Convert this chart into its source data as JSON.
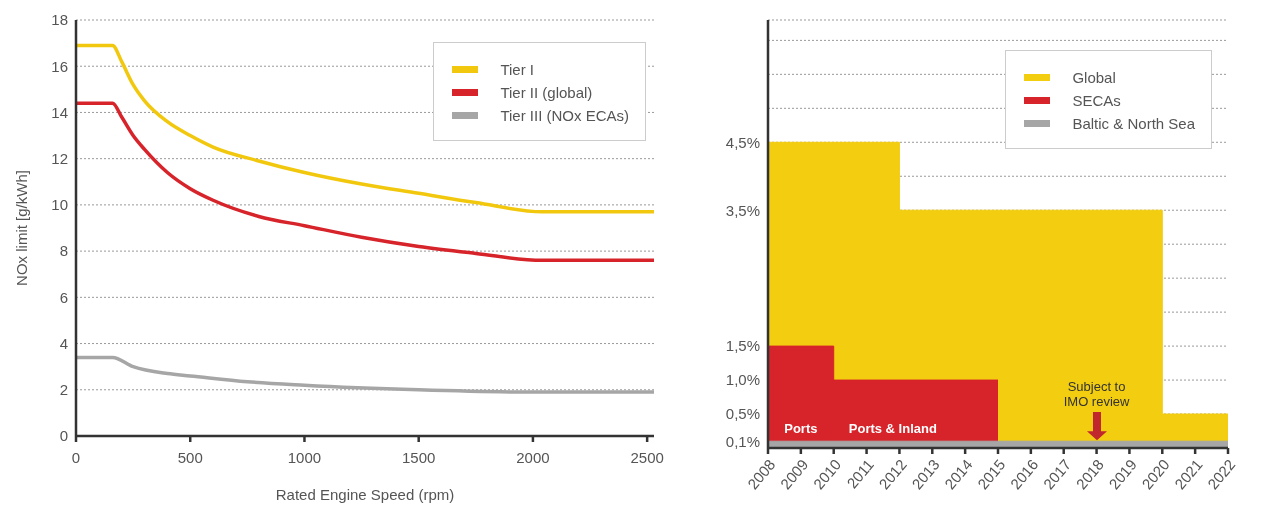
{
  "chart_data": [
    {
      "type": "line",
      "xlabel": "Rated Engine Speed (rpm)",
      "ylabel": "NOx limit [g/kWh]",
      "xlim": [
        0,
        2530
      ],
      "xticks": [
        0,
        500,
        1000,
        1500,
        2000,
        2500
      ],
      "ylim": [
        0,
        18
      ],
      "yticks": [
        0,
        2,
        4,
        6,
        8,
        10,
        12,
        14,
        16,
        18
      ],
      "grid": "y",
      "legend": "top right",
      "marker": "none",
      "series": [
        {
          "name": "Tier I",
          "color": "#f2c80f",
          "x": [
            0,
            160,
            200,
            250,
            300,
            400,
            500,
            600,
            800,
            1000,
            1250,
            1500,
            1750,
            2040,
            2530
          ],
          "values": [
            16.9,
            16.9,
            16.2,
            15.2,
            14.5,
            13.6,
            13.0,
            12.5,
            11.9,
            11.4,
            10.9,
            10.5,
            10.1,
            9.7,
            9.7
          ]
        },
        {
          "name": "Tier II (global)",
          "color": "#d7232a",
          "x": [
            0,
            160,
            200,
            250,
            300,
            400,
            500,
            600,
            800,
            1000,
            1250,
            1500,
            1750,
            2040,
            2530
          ],
          "values": [
            14.4,
            14.4,
            13.8,
            13.0,
            12.4,
            11.4,
            10.7,
            10.2,
            9.5,
            9.1,
            8.6,
            8.2,
            7.9,
            7.6,
            7.6
          ]
        },
        {
          "name": "Tier III (NOx ECAs)",
          "color": "#a6a6a6",
          "x": [
            0,
            160,
            250,
            400,
            500,
            750,
            1000,
            1500,
            2000,
            2530
          ],
          "values": [
            3.4,
            3.4,
            3.0,
            2.7,
            2.6,
            2.35,
            2.2,
            2.0,
            1.9,
            1.9
          ]
        }
      ]
    },
    {
      "type": "area",
      "xlim": [
        2008,
        2022
      ],
      "xticks": [
        2008,
        2009,
        2010,
        2011,
        2012,
        2013,
        2014,
        2015,
        2016,
        2017,
        2018,
        2019,
        2020,
        2021,
        2022
      ],
      "ylim": [
        0,
        6.3
      ],
      "yticks": [
        {
          "value": 0.1,
          "label": "0,1%"
        },
        {
          "value": 0.5,
          "label": "0,5%"
        },
        {
          "value": 1.0,
          "label": "1,0%"
        },
        {
          "value": 1.5,
          "label": "1,5%"
        },
        {
          "value": 2.0,
          "label": null
        },
        {
          "value": 2.5,
          "label": null
        },
        {
          "value": 3.0,
          "label": null
        },
        {
          "value": 3.5,
          "label": "3,5%"
        },
        {
          "value": 4.0,
          "label": null
        },
        {
          "value": 4.5,
          "label": "4,5%"
        },
        {
          "value": 5.0,
          "label": null
        },
        {
          "value": 5.5,
          "label": null
        },
        {
          "value": 6.0,
          "label": null
        }
      ],
      "grid": "y",
      "legend": "top right",
      "series": [
        {
          "name": "Global",
          "color": "#f2cd10",
          "x": [
            2008,
            2012,
            2012,
            2020,
            2020,
            2022
          ],
          "values": [
            4.5,
            4.5,
            3.5,
            3.5,
            0.5,
            0.5
          ]
        },
        {
          "name": "SECAs",
          "color": "#d7232a",
          "x": [
            2008,
            2010,
            2010,
            2015
          ],
          "values": [
            1.5,
            1.5,
            1.0,
            1.0
          ]
        },
        {
          "name": "Baltic & North Sea",
          "color": "#a6a6a6",
          "x": [
            2008,
            2022
          ],
          "values": [
            0.1,
            0.1
          ]
        }
      ],
      "annotations": [
        "Ports",
        "Ports & Inland",
        "Subject to IMO review"
      ]
    }
  ]
}
